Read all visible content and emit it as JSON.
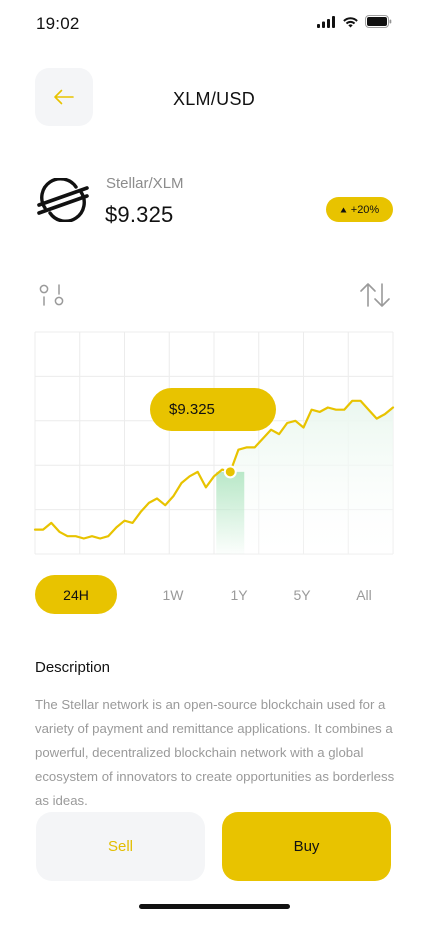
{
  "status_bar": {
    "time": "19:02"
  },
  "header": {
    "title": "XLM/USD"
  },
  "coin": {
    "name": "Stellar/XLM",
    "price": "$9.325",
    "change": "+20%"
  },
  "chart": {
    "tooltip_price": "$9.325"
  },
  "chart_data": {
    "type": "line",
    "title": "",
    "xlabel": "",
    "ylabel": "",
    "y_normalized": [
      0.89,
      0.89,
      0.86,
      0.9,
      0.92,
      0.92,
      0.93,
      0.92,
      0.93,
      0.92,
      0.88,
      0.85,
      0.86,
      0.81,
      0.77,
      0.75,
      0.78,
      0.74,
      0.68,
      0.65,
      0.63,
      0.7,
      0.65,
      0.62,
      0.63,
      0.53,
      0.52,
      0.52,
      0.48,
      0.44,
      0.46,
      0.41,
      0.4,
      0.43,
      0.35,
      0.36,
      0.34,
      0.35,
      0.35,
      0.31,
      0.31,
      0.35,
      0.39,
      0.37,
      0.34
    ],
    "highlight_index": 24
  },
  "range_tabs": {
    "items": [
      "24H",
      "1W",
      "1Y",
      "5Y",
      "All"
    ],
    "active": "24H"
  },
  "description": {
    "title": "Description",
    "text": "The Stellar network is an open-source blockchain used for a variety of payment and remittance applications. It combines a powerful, decentralized blockchain network with a global ecosystem of innovators to create opportunities as borderless as ideas."
  },
  "actions": {
    "sell_label": "Sell",
    "buy_label": "Buy"
  },
  "colors": {
    "accent": "#e8c300",
    "line": "#e8c300",
    "highlight_bar": "#b9e8c8",
    "area_fill": "#eaf7ef",
    "grid": "#ececec"
  }
}
